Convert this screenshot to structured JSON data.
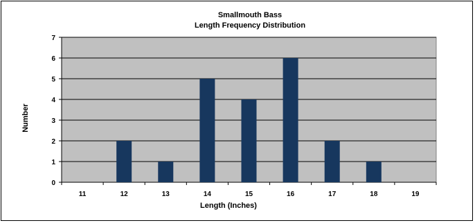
{
  "chart_data": {
    "type": "bar",
    "title_line1": "Smallmouth Bass",
    "title_line2": "Length Frequency Distribution",
    "xlabel": "Length (Inches)",
    "ylabel": "Number",
    "categories": [
      "11",
      "12",
      "13",
      "14",
      "15",
      "16",
      "17",
      "18",
      "19"
    ],
    "values": [
      0,
      2,
      1,
      5,
      4,
      6,
      2,
      1,
      0
    ],
    "ylim": [
      0,
      7
    ],
    "yticks": [
      "0",
      "1",
      "2",
      "3",
      "4",
      "5",
      "6",
      "7"
    ],
    "grid": true,
    "legend": "none",
    "colors": {
      "bar": "#17375e",
      "plot_bg": "#c0c0c0",
      "gridline": "#000000"
    }
  }
}
